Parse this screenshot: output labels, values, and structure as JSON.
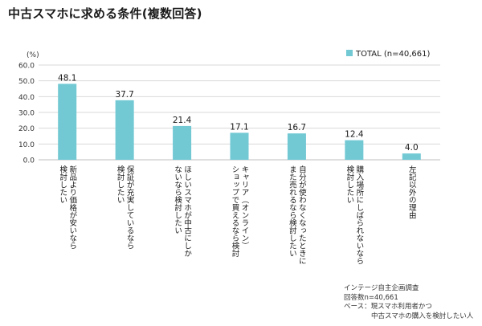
{
  "title": "中古スマホに求める条件(複数回答)",
  "chart_data": {
    "type": "bar",
    "unit_label": "(%)",
    "ylim": [
      0,
      60
    ],
    "yticks": [
      "0.0",
      "10.0",
      "20.0",
      "30.0",
      "40.0",
      "50.0",
      "60.0"
    ],
    "grid": true,
    "legend_position": "top-right",
    "series": [
      {
        "name": "TOTAL (n=40,661)",
        "color": "#72c9d4",
        "values": [
          48.1,
          37.7,
          21.4,
          17.1,
          16.7,
          12.4,
          4.0
        ],
        "value_labels": [
          "48.1",
          "37.7",
          "21.4",
          "17.1",
          "16.7",
          "12.4",
          "4.0"
        ]
      }
    ],
    "categories": [
      [
        "新品より価格が安いなら",
        "検討したい"
      ],
      [
        "保証が充実しているなら",
        "検討したい"
      ],
      [
        "ほしいスマホが中古にしか",
        "ないなら検討したい"
      ],
      [
        "キャリア（オンライン）",
        "ショップで買えるなら検討"
      ],
      [
        "自分が使わなくなったときに",
        "また売れるなら検討したい"
      ],
      [
        "購入場所にしばられないなら",
        "検討したい"
      ],
      [
        "左記以外の理由"
      ]
    ]
  },
  "source_note": [
    "インテージ自主企画調査",
    "回答数n=40,661",
    "ベース：現スマホ利用者かつ",
    "　　　　中古スマホの購入を検討したい人"
  ]
}
